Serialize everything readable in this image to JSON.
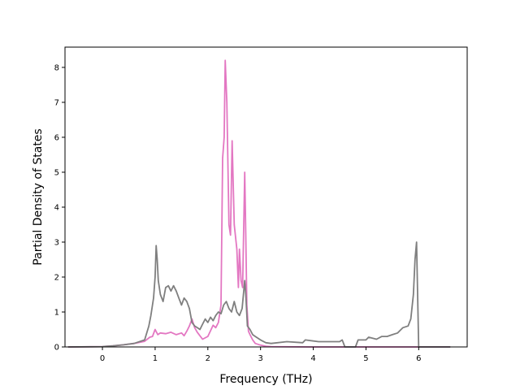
{
  "chart_data": {
    "type": "line",
    "title": "",
    "xlabel": "Frequency (THz)",
    "ylabel": "Partial Density of States",
    "xlim": [
      -0.71,
      6.92
    ],
    "ylim": [
      0,
      8.58
    ],
    "xticks": [
      0,
      1,
      2,
      3,
      4,
      5,
      6
    ],
    "yticks": [
      0,
      1,
      2,
      3,
      4,
      5,
      6,
      7,
      8
    ],
    "grid": false,
    "legend": "none",
    "series": [
      {
        "color": "#e377c2",
        "x": [
          -0.65,
          0.0,
          0.2,
          0.4,
          0.6,
          0.8,
          0.9,
          0.95,
          1.0,
          1.05,
          1.1,
          1.2,
          1.3,
          1.4,
          1.5,
          1.55,
          1.6,
          1.65,
          1.7,
          1.75,
          1.8,
          1.9,
          2.0,
          2.1,
          2.15,
          2.2,
          2.25,
          2.28,
          2.31,
          2.33,
          2.36,
          2.4,
          2.43,
          2.46,
          2.5,
          2.55,
          2.58,
          2.6,
          2.63,
          2.66,
          2.7,
          2.72,
          2.74,
          2.77,
          2.8,
          2.85,
          2.9,
          3.0,
          3.1,
          3.2,
          4.0,
          5.0,
          5.9,
          6.6
        ],
        "values": [
          0,
          0.01,
          0.03,
          0.06,
          0.1,
          0.16,
          0.28,
          0.3,
          0.5,
          0.35,
          0.4,
          0.38,
          0.42,
          0.35,
          0.4,
          0.32,
          0.45,
          0.6,
          0.8,
          0.55,
          0.42,
          0.22,
          0.3,
          0.62,
          0.55,
          0.7,
          1.2,
          5.4,
          6.0,
          8.2,
          7.0,
          3.5,
          3.2,
          5.9,
          3.5,
          2.8,
          1.7,
          2.8,
          1.9,
          1.7,
          5.0,
          3.2,
          1.2,
          0.45,
          0.35,
          0.2,
          0.1,
          0.05,
          0.02,
          0.01,
          0,
          0,
          0,
          0
        ]
      },
      {
        "color": "#7f7f7f",
        "x": [
          -0.65,
          0.0,
          0.2,
          0.4,
          0.6,
          0.8,
          0.88,
          0.92,
          0.97,
          1.0,
          1.02,
          1.04,
          1.06,
          1.1,
          1.15,
          1.2,
          1.25,
          1.3,
          1.35,
          1.4,
          1.45,
          1.5,
          1.55,
          1.6,
          1.65,
          1.7,
          1.75,
          1.8,
          1.85,
          1.9,
          1.95,
          2.0,
          2.05,
          2.1,
          2.15,
          2.2,
          2.25,
          2.3,
          2.35,
          2.4,
          2.45,
          2.5,
          2.55,
          2.6,
          2.65,
          2.7,
          2.72,
          2.75,
          2.8,
          2.85,
          2.9,
          3.0,
          3.1,
          3.2,
          3.5,
          3.8,
          3.85,
          4.1,
          4.5,
          4.55,
          4.6,
          4.75,
          4.8,
          4.85,
          5.0,
          5.05,
          5.2,
          5.3,
          5.4,
          5.5,
          5.6,
          5.7,
          5.8,
          5.85,
          5.9,
          5.93,
          5.96,
          6.0,
          6.6
        ],
        "values": [
          0,
          0.01,
          0.03,
          0.06,
          0.1,
          0.2,
          0.6,
          0.9,
          1.4,
          2.0,
          2.9,
          2.5,
          1.9,
          1.5,
          1.3,
          1.7,
          1.75,
          1.6,
          1.75,
          1.6,
          1.4,
          1.2,
          1.4,
          1.3,
          1.1,
          0.7,
          0.6,
          0.55,
          0.5,
          0.65,
          0.8,
          0.7,
          0.85,
          0.75,
          0.9,
          1.0,
          0.95,
          1.2,
          1.3,
          1.1,
          1.0,
          1.3,
          1.0,
          0.9,
          1.1,
          1.9,
          1.5,
          0.6,
          0.5,
          0.35,
          0.3,
          0.2,
          0.12,
          0.1,
          0.15,
          0.12,
          0.2,
          0.15,
          0.15,
          0.2,
          0.0,
          0.0,
          0.0,
          0.2,
          0.2,
          0.28,
          0.22,
          0.3,
          0.3,
          0.35,
          0.4,
          0.55,
          0.6,
          0.8,
          1.5,
          2.5,
          3.0,
          0.0,
          0
        ]
      }
    ]
  }
}
